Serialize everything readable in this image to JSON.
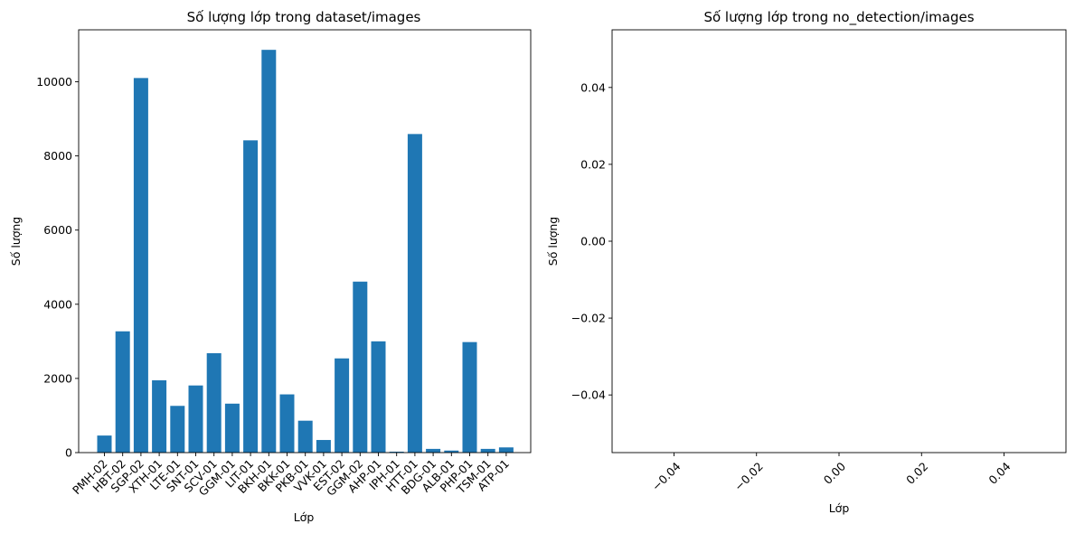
{
  "chart_data": [
    {
      "type": "bar",
      "title": "Số lượng lớp trong dataset/images",
      "xlabel": "Lớp",
      "ylabel": "Số lượng",
      "categories": [
        "PMH-02",
        "HBT-02",
        "SGP-02",
        "XTH-01",
        "LTE-01",
        "SNT-01",
        "SCV-01",
        "GGM-01",
        "LIT-01",
        "BKH-01",
        "BKK-01",
        "PKB-01",
        "VVK-01",
        "EST-02",
        "GGM-02",
        "AHP-01",
        "IPH-01",
        "HTT-01",
        "BDG-01",
        "ALB-01",
        "PHP-01",
        "TSM-01",
        "ATP-01"
      ],
      "values": [
        460,
        3270,
        10100,
        1950,
        1260,
        1810,
        2680,
        1320,
        8420,
        10860,
        1570,
        860,
        340,
        2540,
        4610,
        3000,
        25,
        8590,
        100,
        55,
        2980,
        100,
        140
      ],
      "ylim": [
        0,
        11400
      ],
      "yticks": [
        0,
        2000,
        4000,
        6000,
        8000,
        10000
      ],
      "ytick_labels": [
        "0",
        "2000",
        "4000",
        "6000",
        "8000",
        "10000"
      ],
      "bar_color": "#1f77b4",
      "grid": false
    },
    {
      "type": "bar",
      "title": "Số lượng lớp trong no_detection/images",
      "xlabel": "Lớp",
      "ylabel": "Số lượng",
      "categories": [],
      "values": [],
      "xlim": [
        -0.055,
        0.055
      ],
      "ylim": [
        -0.055,
        0.055
      ],
      "xticks": [
        -0.04,
        -0.02,
        0.0,
        0.02,
        0.04
      ],
      "xtick_labels": [
        "−0.04",
        "−0.02",
        "0.00",
        "0.02",
        "0.04"
      ],
      "yticks": [
        -0.04,
        -0.02,
        0.0,
        0.02,
        0.04
      ],
      "ytick_labels": [
        "−0.04",
        "−0.02",
        "0.00",
        "0.02",
        "0.04"
      ],
      "grid": false
    }
  ]
}
